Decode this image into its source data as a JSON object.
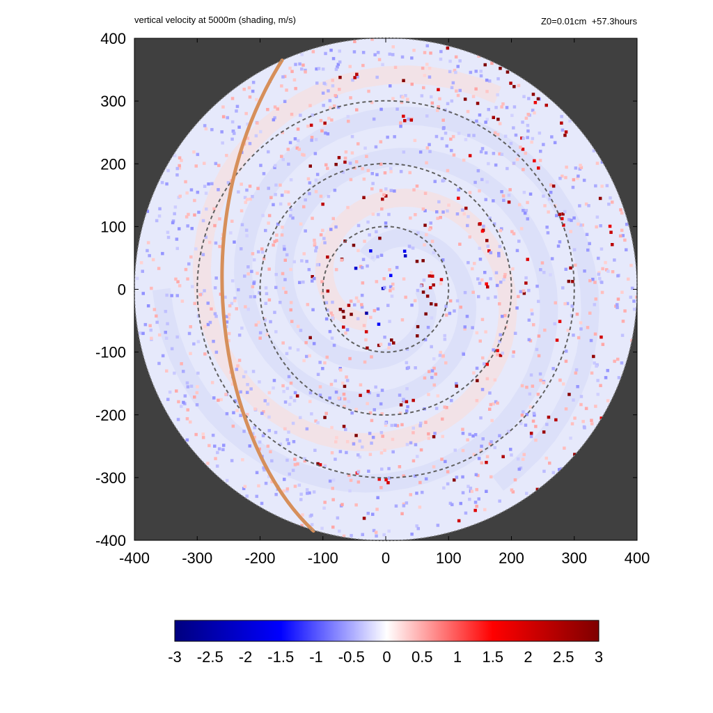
{
  "chart_data": {
    "type": "heatmap",
    "title": "vertical velocity at 5000m (shading, m/s)",
    "subtitle": "Z0=0.01cm  +57.3hours",
    "xlabel": "",
    "ylabel": "",
    "xlim": [
      -400,
      400
    ],
    "ylim": [
      -400,
      400
    ],
    "x_ticks": [
      "-400",
      "-300",
      "-200",
      "-100",
      "0",
      "100",
      "200",
      "300",
      "400"
    ],
    "y_ticks": [
      "400",
      "300",
      "200",
      "100",
      "0",
      "-100",
      "-200",
      "-300",
      "-400"
    ],
    "domain_radius": 400,
    "range_rings": [
      100,
      200,
      300
    ],
    "colorbar": {
      "min": -3,
      "max": 3,
      "ticks": [
        "-3",
        "-2.5",
        "-2",
        "-1.5",
        "-1",
        "-0.5",
        "0",
        "0.5",
        "1",
        "1.5",
        "2",
        "2.5",
        "3"
      ],
      "colors": [
        "#00007f",
        "#0000ff",
        "#ffffff",
        "#ff0000",
        "#7f0000"
      ]
    },
    "outside_color": "#404040",
    "track_color": "#d68f5a"
  }
}
